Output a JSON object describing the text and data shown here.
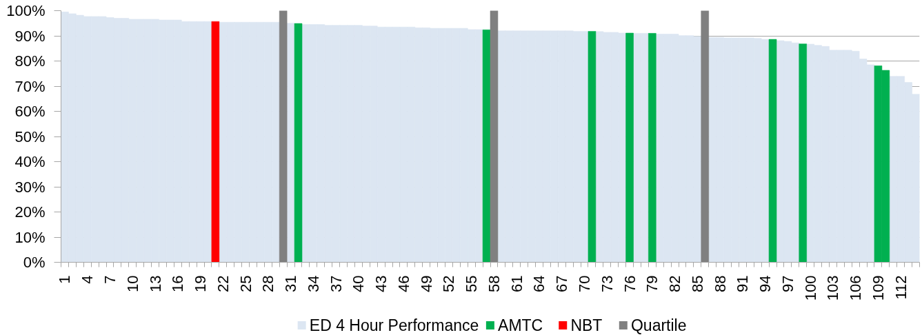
{
  "chart_data": {
    "type": "bar",
    "categories": [
      "1",
      null,
      null,
      "4",
      null,
      null,
      "7",
      null,
      null,
      "10",
      null,
      null,
      "13",
      null,
      null,
      "16",
      null,
      null,
      "19",
      null,
      null,
      "22",
      null,
      null,
      "25",
      null,
      null,
      "28",
      null,
      null,
      "31",
      null,
      null,
      "34",
      null,
      null,
      "37",
      null,
      null,
      "40",
      null,
      null,
      "43",
      null,
      null,
      "46",
      null,
      null,
      "49",
      null,
      null,
      "52",
      null,
      null,
      "55",
      null,
      null,
      "58",
      null,
      null,
      "61",
      null,
      null,
      "64",
      null,
      null,
      "67",
      null,
      null,
      "70",
      null,
      null,
      "73",
      null,
      null,
      "76",
      null,
      null,
      "79",
      null,
      null,
      "82",
      null,
      null,
      "85",
      null,
      null,
      "88",
      null,
      null,
      "91",
      null,
      null,
      "94",
      null,
      null,
      "97",
      null,
      null,
      "100",
      null,
      null,
      "103",
      null,
      null,
      "106",
      null,
      null,
      "109",
      null,
      null,
      "112",
      null,
      null
    ],
    "series": [
      {
        "name": "ED 4 Hour Performance",
        "color": "#dce6f2",
        "values": [
          99.5,
          98.8,
          98.2,
          97.7,
          97.7,
          97.7,
          97.3,
          97.0,
          97.0,
          96.6,
          96.6,
          96.6,
          96.6,
          96.3,
          96.3,
          96.3,
          95.7,
          95.7,
          95.7,
          95.7,
          null,
          95.4,
          95.4,
          95.4,
          95.4,
          95.4,
          95.4,
          95.4,
          95.4,
          null,
          95.0,
          null,
          94.5,
          94.5,
          94.5,
          94.2,
          94.2,
          94.2,
          94.2,
          94.2,
          93.9,
          93.9,
          93.5,
          93.5,
          93.5,
          93.5,
          93.5,
          93.2,
          93.2,
          93.0,
          93.0,
          93.0,
          93.0,
          93.0,
          92.5,
          92.5,
          null,
          null,
          92.0,
          92.0,
          92.0,
          92.0,
          92.0,
          92.0,
          92.0,
          92.0,
          92.0,
          92.0,
          91.8,
          91.8,
          null,
          91.7,
          91.4,
          91.4,
          91.1,
          null,
          91.0,
          91.0,
          null,
          90.7,
          90.7,
          90.7,
          90.1,
          90.1,
          89.8,
          null,
          89.4,
          89.4,
          89.2,
          89.2,
          89.2,
          89.2,
          89.0,
          88.6,
          null,
          88.1,
          87.8,
          87.2,
          null,
          86.7,
          86.2,
          85.8,
          84.3,
          84.3,
          84.3,
          83.9,
          80.8,
          78.5,
          null,
          null,
          73.9,
          73.9,
          71.5,
          66.8
        ]
      },
      {
        "name": "AMTC",
        "color": "#00b050",
        "values": [
          null,
          null,
          null,
          null,
          null,
          null,
          null,
          null,
          null,
          null,
          null,
          null,
          null,
          null,
          null,
          null,
          null,
          null,
          null,
          null,
          null,
          null,
          null,
          null,
          null,
          null,
          null,
          null,
          null,
          null,
          null,
          94.9,
          null,
          null,
          null,
          null,
          null,
          null,
          null,
          null,
          null,
          null,
          null,
          null,
          null,
          null,
          null,
          null,
          null,
          null,
          null,
          null,
          null,
          null,
          null,
          null,
          92.4,
          null,
          null,
          null,
          null,
          null,
          null,
          null,
          null,
          null,
          null,
          null,
          null,
          null,
          91.8,
          null,
          null,
          null,
          null,
          91.1,
          null,
          null,
          91.0,
          null,
          null,
          null,
          null,
          null,
          null,
          null,
          null,
          null,
          null,
          null,
          null,
          null,
          null,
          null,
          88.6,
          null,
          null,
          null,
          86.8,
          null,
          null,
          null,
          null,
          null,
          null,
          null,
          null,
          null,
          78.1,
          76.3,
          null,
          null,
          null,
          null
        ]
      },
      {
        "name": "NBT",
        "color": "#ff0000",
        "values": [
          null,
          null,
          null,
          null,
          null,
          null,
          null,
          null,
          null,
          null,
          null,
          null,
          null,
          null,
          null,
          null,
          null,
          null,
          null,
          null,
          95.7,
          null,
          null,
          null,
          null,
          null,
          null,
          null,
          null,
          null,
          null,
          null,
          null,
          null,
          null,
          null,
          null,
          null,
          null,
          null,
          null,
          null,
          null,
          null,
          null,
          null,
          null,
          null,
          null,
          null,
          null,
          null,
          null,
          null,
          null,
          null,
          null,
          null,
          null,
          null,
          null,
          null,
          null,
          null,
          null,
          null,
          null,
          null,
          null,
          null,
          null,
          null,
          null,
          null,
          null,
          null,
          null,
          null,
          null,
          null,
          null,
          null,
          null,
          null,
          null,
          null,
          null,
          null,
          null,
          null,
          null,
          null,
          null,
          null,
          null,
          null,
          null,
          null,
          null,
          null,
          null,
          null,
          null,
          null,
          null,
          null,
          null,
          null,
          null,
          null,
          null,
          null,
          null,
          null
        ]
      },
      {
        "name": "Quartile",
        "color": "#808080",
        "values": [
          null,
          null,
          null,
          null,
          null,
          null,
          null,
          null,
          null,
          null,
          null,
          null,
          null,
          null,
          null,
          null,
          null,
          null,
          null,
          null,
          null,
          null,
          null,
          null,
          null,
          null,
          null,
          null,
          null,
          100,
          null,
          null,
          null,
          null,
          null,
          null,
          null,
          null,
          null,
          null,
          null,
          null,
          null,
          null,
          null,
          null,
          null,
          null,
          null,
          null,
          null,
          null,
          null,
          null,
          null,
          null,
          null,
          100,
          null,
          null,
          null,
          null,
          null,
          null,
          null,
          null,
          null,
          null,
          null,
          null,
          null,
          null,
          null,
          null,
          null,
          null,
          null,
          null,
          null,
          null,
          null,
          null,
          null,
          null,
          null,
          100,
          null,
          null,
          null,
          null,
          null,
          null,
          null,
          null,
          null,
          null,
          null,
          null,
          null,
          null,
          null,
          null,
          null,
          null,
          null,
          null,
          null,
          null,
          null,
          null,
          null,
          null,
          null,
          null
        ]
      }
    ],
    "ylim": [
      0,
      100
    ],
    "yticks": [
      {
        "value": 0,
        "label": "0%"
      },
      {
        "value": 10,
        "label": "10%"
      },
      {
        "value": 20,
        "label": "20%"
      },
      {
        "value": 30,
        "label": "30%"
      },
      {
        "value": 40,
        "label": "40%"
      },
      {
        "value": 50,
        "label": "50%"
      },
      {
        "value": 60,
        "label": "60%"
      },
      {
        "value": 70,
        "label": "70%"
      },
      {
        "value": 80,
        "label": "80%"
      },
      {
        "value": 90,
        "label": "90%"
      },
      {
        "value": 100,
        "label": "100%"
      }
    ],
    "grid": "y",
    "legend": "bottom"
  }
}
